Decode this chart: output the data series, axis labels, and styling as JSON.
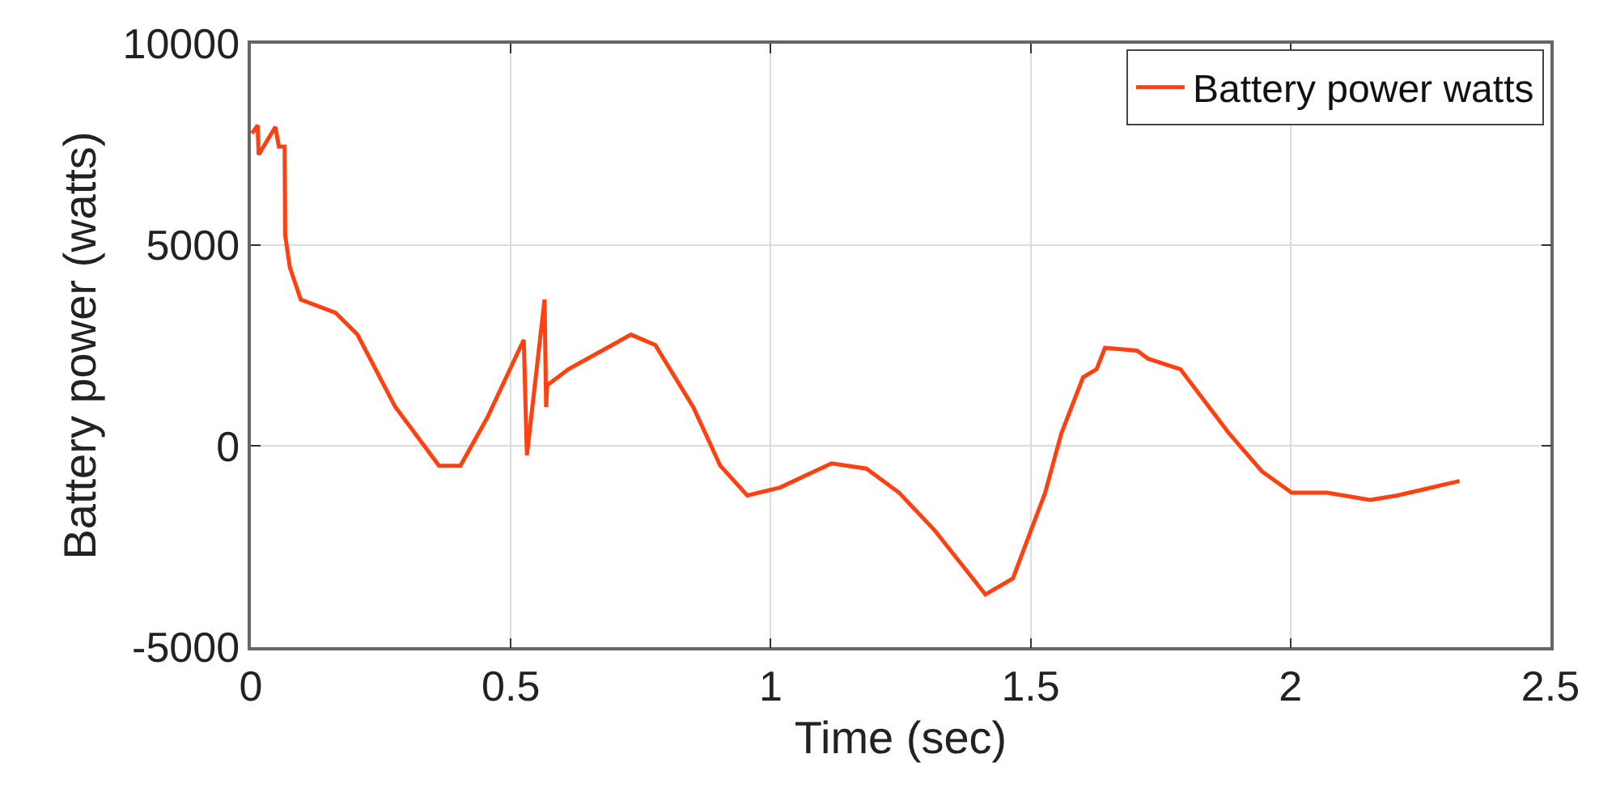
{
  "chart_data": {
    "type": "line",
    "xlabel": "Time (sec)",
    "ylabel": "Battery power (watts)",
    "xlim": [
      0,
      2.5
    ],
    "xticks": [
      0,
      0.5,
      1,
      1.5,
      2,
      2.5
    ],
    "ylim": [
      -5000,
      10000
    ],
    "yticks": [
      -5000,
      0,
      5000,
      10000
    ],
    "grid": true,
    "legend": "top right",
    "marker": "none",
    "line_style": "solid",
    "series": [
      {
        "name": "Battery power watts",
        "color": "#ff4010",
        "x": [
          0.002,
          0.013,
          0.015,
          0.047,
          0.054,
          0.065,
          0.066,
          0.075,
          0.096,
          0.163,
          0.205,
          0.278,
          0.362,
          0.403,
          0.455,
          0.525,
          0.531,
          0.565,
          0.568,
          0.57,
          0.611,
          0.695,
          0.731,
          0.778,
          0.851,
          0.903,
          0.955,
          1.018,
          1.117,
          1.184,
          1.247,
          1.315,
          1.413,
          1.466,
          1.528,
          1.559,
          1.601,
          1.627,
          1.643,
          1.705,
          1.726,
          1.788,
          1.882,
          1.945,
          2.002,
          2.07,
          2.153,
          2.205,
          2.325
        ],
        "values": [
          7770,
          7970,
          7240,
          7930,
          7440,
          7440,
          5240,
          4440,
          3640,
          3310,
          2770,
          970,
          -490,
          -490,
          710,
          2640,
          -230,
          3640,
          970,
          1510,
          1910,
          2510,
          2770,
          2510,
          970,
          -490,
          -1230,
          -1030,
          -430,
          -560,
          -1160,
          -2090,
          -3690,
          -3290,
          -1160,
          310,
          1710,
          1910,
          2440,
          2370,
          2170,
          1910,
          310,
          -630,
          -1160,
          -1160,
          -1340,
          -1230,
          -870
        ]
      }
    ]
  }
}
